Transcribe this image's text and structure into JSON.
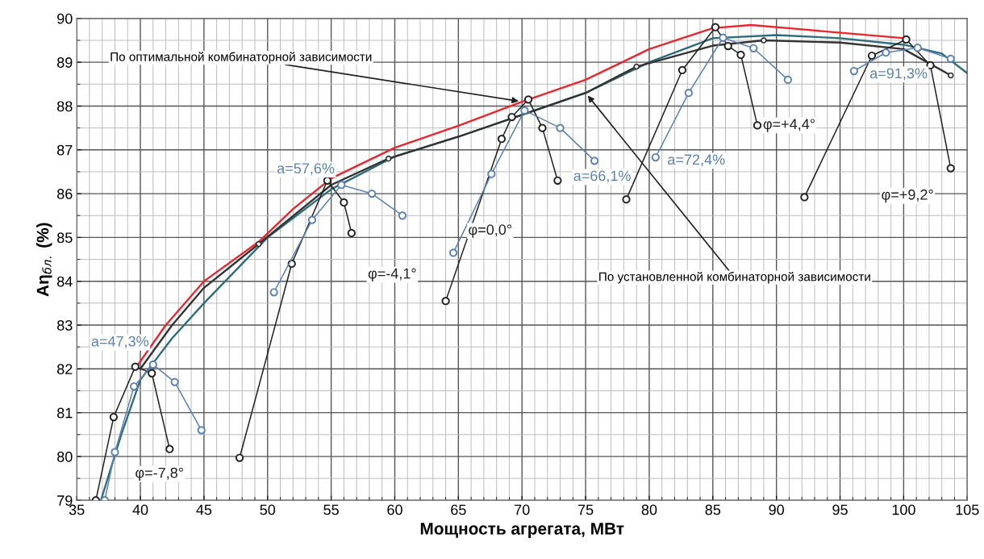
{
  "chart_data": {
    "type": "line",
    "xlabel": "Мощность агрегата, МВт",
    "ylabel": "Aη$_{бл.}$ (%)",
    "xlim": [
      35,
      105
    ],
    "xticks": [
      35,
      40,
      45,
      50,
      55,
      60,
      65,
      70,
      75,
      80,
      85,
      90,
      95,
      100,
      105
    ],
    "ylim": [
      79,
      90
    ],
    "yticks": [
      79,
      80,
      81,
      82,
      83,
      84,
      85,
      86,
      87,
      88,
      89,
      90
    ],
    "grid": true,
    "legend": false,
    "series": [
      {
        "color": "#2d6d7d",
        "marker": "none",
        "x": [
          36.9,
          38.5,
          40,
          42.5,
          45,
          50,
          55,
          60,
          65,
          70,
          75,
          80,
          85,
          90,
          95,
          100,
          103,
          105
        ],
        "values": [
          79,
          80.5,
          81.75,
          82.7,
          83.5,
          85.0,
          86.1,
          86.85,
          87.3,
          87.8,
          88.3,
          89.0,
          89.55,
          89.62,
          89.55,
          89.4,
          89.2,
          88.75
        ]
      },
      {
        "color": "#333333",
        "marker": "none",
        "x": [
          40,
          42.5,
          45,
          49.3,
          55,
          59.5,
          65,
          70,
          75,
          79,
          85,
          89,
          95,
          100,
          103.7
        ],
        "values": [
          82.0,
          83.0,
          83.85,
          84.85,
          86.2,
          86.8,
          87.3,
          87.8,
          88.3,
          88.9,
          89.38,
          89.5,
          89.45,
          89.3,
          88.7
        ]
      },
      {
        "color": "#e8262e",
        "marker": "none",
        "x": [
          39.7,
          42,
          45,
          49.3,
          52,
          55,
          60,
          65,
          70,
          75,
          80,
          85,
          88,
          92,
          96,
          100
        ],
        "values": [
          82.05,
          83.0,
          84.0,
          84.9,
          85.65,
          86.35,
          87.05,
          87.55,
          88.1,
          88.6,
          89.3,
          89.78,
          89.85,
          89.75,
          89.65,
          89.55
        ]
      },
      {
        "type": "scatter",
        "color": "#333333",
        "marker": "circle",
        "x": [
          49.3,
          59.5,
          79,
          89,
          103.7
        ],
        "values": [
          84.85,
          86.8,
          88.9,
          89.5,
          88.7
        ]
      },
      {
        "name": "φ=-7,8°",
        "color": "#222222",
        "marker": "circle",
        "x": [
          36.5,
          37.9,
          39.6,
          40.9,
          42.3
        ],
        "values": [
          79.0,
          80.9,
          82.05,
          81.9,
          80.17
        ]
      },
      {
        "name": "a=47,3%",
        "color": "#5b82b5",
        "marker": "circle",
        "x": [
          37.2,
          38.0,
          39.5,
          41.0,
          42.7,
          44.8
        ],
        "values": [
          79.0,
          80.1,
          81.6,
          82.1,
          81.7,
          80.6
        ]
      },
      {
        "name": "φ=-4,1°",
        "color": "#222222",
        "marker": "circle",
        "x": [
          47.8,
          51.9,
          54.7,
          56.0,
          56.6
        ],
        "values": [
          79.97,
          84.4,
          86.3,
          85.8,
          85.1
        ]
      },
      {
        "name": "a=57,6%",
        "color": "#5b82b5",
        "marker": "circle",
        "x": [
          50.5,
          53.5,
          55.8,
          58.2,
          60.6
        ],
        "values": [
          83.75,
          85.4,
          86.2,
          86.0,
          85.5
        ]
      },
      {
        "name": "φ=0,0°",
        "color": "#222222",
        "marker": "circle",
        "x": [
          64.0,
          68.4,
          69.2,
          70.5,
          71.6,
          72.8
        ],
        "values": [
          83.55,
          87.25,
          87.75,
          88.15,
          87.5,
          86.3
        ]
      },
      {
        "name": "a=66,1%",
        "color": "#5b82b5",
        "marker": "circle",
        "x": [
          64.6,
          67.6,
          70.2,
          73.0,
          75.7
        ],
        "values": [
          84.65,
          86.45,
          87.9,
          87.5,
          86.75
        ]
      },
      {
        "name": "φ=+4,4°",
        "color": "#222222",
        "marker": "circle",
        "x": [
          78.2,
          82.6,
          85.2,
          86.2,
          87.2,
          88.5
        ],
        "values": [
          85.87,
          88.82,
          89.8,
          89.37,
          89.17,
          87.56
        ]
      },
      {
        "name": "a=72,4%",
        "color": "#5b82b5",
        "marker": "circle",
        "x": [
          80.5,
          83.1,
          85.8,
          88.2,
          90.9
        ],
        "values": [
          86.83,
          88.3,
          89.56,
          89.32,
          88.6
        ]
      },
      {
        "name": "φ=+9,2°",
        "color": "#222222",
        "marker": "circle",
        "x": [
          92.2,
          97.5,
          100.2,
          102.1,
          103.7
        ],
        "values": [
          85.92,
          89.15,
          89.52,
          88.93,
          86.58
        ]
      },
      {
        "name": "a=91,3%",
        "color": "#5b82b5",
        "marker": "circle",
        "x": [
          96.1,
          98.6,
          101.1,
          103.7
        ],
        "values": [
          88.8,
          89.22,
          89.33,
          89.08
        ]
      }
    ],
    "annotations": [
      {
        "text": "По оптимальной комбинаторной зависимости",
        "x": 70,
        "y": 88.1
      },
      {
        "text": "По установленной комбинаторной зависимости",
        "x": 75,
        "y": 88.3
      }
    ]
  }
}
